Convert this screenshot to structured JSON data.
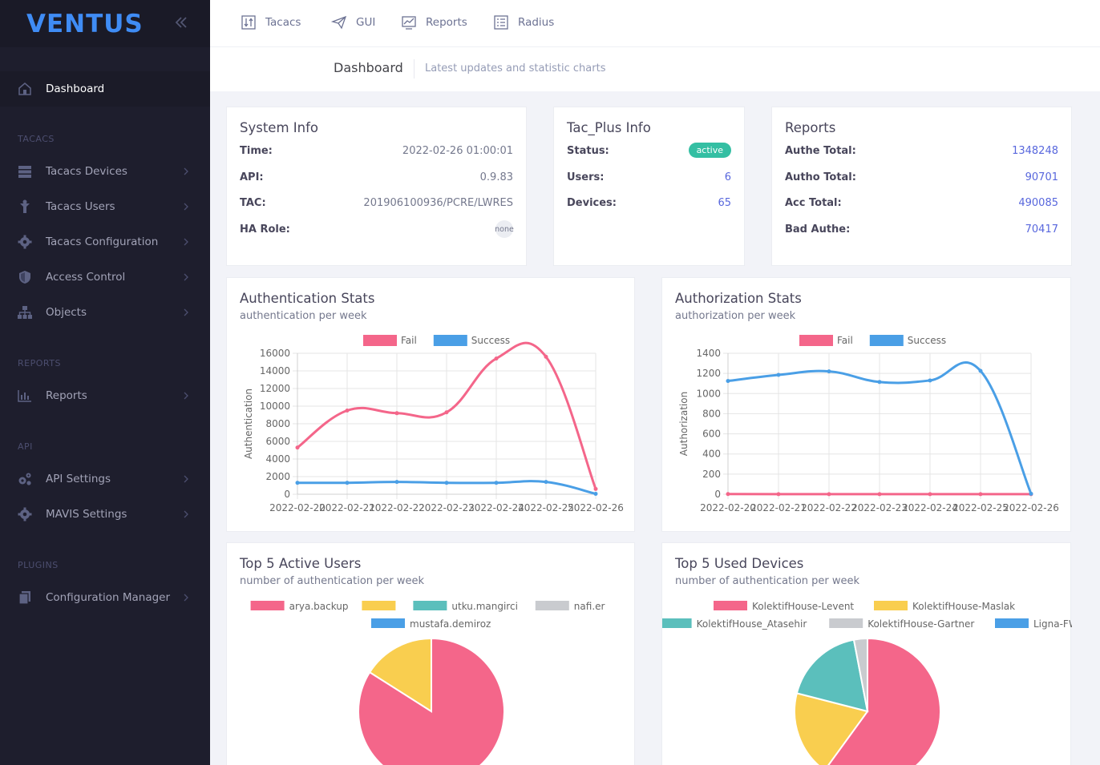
{
  "brand": {
    "name": "VENTUS"
  },
  "sidebar": {
    "dashboard": "Dashboard",
    "sections": {
      "tacacs": "TACACS",
      "reports": "REPORTS",
      "api": "API",
      "plugins": "PLUGINS"
    },
    "items": {
      "tacacs_devices": "Tacacs Devices",
      "tacacs_users": "Tacacs Users",
      "tacacs_configuration": "Tacacs Configuration",
      "access_control": "Access Control",
      "objects": "Objects",
      "reports": "Reports",
      "api_settings": "API Settings",
      "mavis_settings": "MAVIS Settings",
      "configuration_manager": "Configuration Manager"
    }
  },
  "topnav": {
    "tacacs": "Tacacs",
    "gui": "GUI",
    "reports": "Reports",
    "radius": "Radius"
  },
  "subheader": {
    "title": "Dashboard",
    "desc": "Latest updates and statistic charts"
  },
  "system_info": {
    "title": "System Info",
    "time_label": "Time:",
    "time": "2022-02-26 01:00:01",
    "api_label": "API:",
    "api": "0.9.83",
    "tac_label": "TAC:",
    "tac": "201906100936/PCRE/LWRES",
    "ha_label": "HA Role:",
    "ha": "none"
  },
  "tacplus_info": {
    "title": "Tac_Plus Info",
    "status_label": "Status:",
    "status": "active",
    "users_label": "Users:",
    "users": "6",
    "devices_label": "Devices:",
    "devices": "65"
  },
  "reports_card": {
    "title": "Reports",
    "authe_label": "Authe Total:",
    "authe": "1348248",
    "autho_label": "Autho Total:",
    "autho": "90701",
    "acc_label": "Acc Total:",
    "acc": "490085",
    "bad_label": "Bad Authe:",
    "bad": "70417"
  },
  "colors": {
    "fail": "#f4668a",
    "success": "#4a9fe6",
    "yellow": "#f9ce4f",
    "teal": "#5bbfbc",
    "grey": "#c9cbcf"
  },
  "chart_data": [
    {
      "type": "line",
      "title": "Authentication Stats",
      "subtitle": "authentication per week",
      "ylabel": "Authentication",
      "ylim": [
        0,
        16000
      ],
      "yticks": [
        0,
        2000,
        4000,
        6000,
        8000,
        10000,
        12000,
        14000,
        16000
      ],
      "categories": [
        "2022-02-20",
        "2022-02-21",
        "2022-02-22",
        "2022-02-23",
        "2022-02-24",
        "2022-02-25",
        "2022-02-26"
      ],
      "series": [
        {
          "name": "Fail",
          "values": [
            5300,
            9500,
            9200,
            9300,
            15400,
            15600,
            600
          ]
        },
        {
          "name": "Success",
          "values": [
            1300,
            1300,
            1400,
            1300,
            1300,
            1400,
            50
          ]
        }
      ]
    },
    {
      "type": "line",
      "title": "Authorization Stats",
      "subtitle": "authorization per week",
      "ylabel": "Authorization",
      "ylim": [
        0,
        1400
      ],
      "yticks": [
        0,
        200,
        400,
        600,
        800,
        1000,
        1200,
        1400
      ],
      "categories": [
        "2022-02-20",
        "2022-02-21",
        "2022-02-22",
        "2022-02-23",
        "2022-02-24",
        "2022-02-25",
        "2022-02-26"
      ],
      "series": [
        {
          "name": "Fail",
          "values": [
            2,
            1,
            1,
            1,
            1,
            1,
            1
          ]
        },
        {
          "name": "Success",
          "values": [
            1125,
            1185,
            1220,
            1115,
            1130,
            1225,
            5
          ]
        }
      ]
    },
    {
      "type": "pie",
      "title": "Top 5 Active Users",
      "subtitle": "number of authentication per week",
      "labels": [
        "arya.backup",
        "",
        "utku.mangirci",
        "nafi.er",
        "mustafa.demiroz"
      ],
      "values": [
        84,
        16,
        0,
        0,
        0
      ]
    },
    {
      "type": "pie",
      "title": "Top 5 Used Devices",
      "subtitle": "number of authentication per week",
      "labels": [
        "KolektifHouse-Levent",
        "KolektifHouse-Maslak",
        "KolektifHouse_Atasehir",
        "KolektifHouse-Gartner",
        "Ligna-FW"
      ],
      "values": [
        60,
        19,
        18,
        3,
        0
      ]
    }
  ]
}
